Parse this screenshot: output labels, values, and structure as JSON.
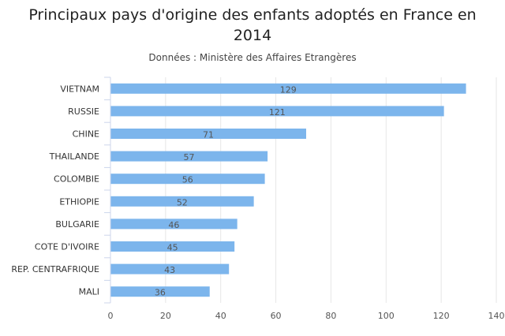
{
  "chart_data": {
    "type": "bar",
    "orientation": "horizontal",
    "title": "Principaux pays d'origine des enfants adoptés en France en 2014",
    "subtitle": "Données : Ministère des Affaires Etrangères",
    "categories": [
      "VIETNAM",
      "RUSSIE",
      "CHINE",
      "THAILANDE",
      "COLOMBIE",
      "ETHIOPIE",
      "BULGARIE",
      "COTE D'IVOIRE",
      "REP. CENTRAFRIQUE",
      "MALI"
    ],
    "values": [
      129,
      121,
      71,
      57,
      56,
      52,
      46,
      45,
      43,
      36
    ],
    "xlim": [
      0,
      140
    ],
    "xticks": [
      0,
      20,
      40,
      60,
      80,
      100,
      120,
      140
    ],
    "grid": true,
    "data_labels": true,
    "bar_color": "#7cb5ec",
    "grid_color": "#e6e6e6",
    "axis_color": "#ccd6eb"
  }
}
